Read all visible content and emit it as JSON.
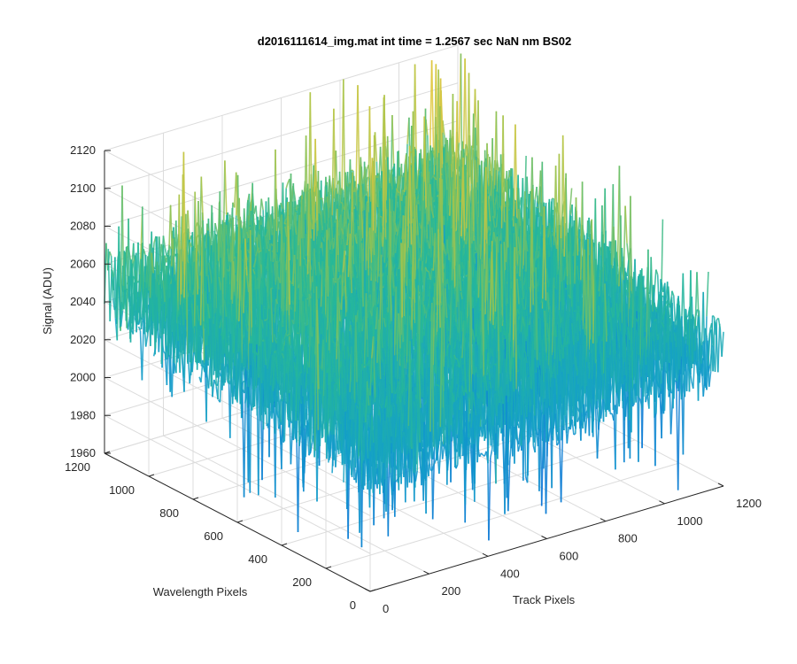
{
  "chart_data": {
    "type": "surface3d",
    "title": "d2016111614_img.mat int time = 1.2567 sec  NaN nm BS02",
    "xlabel": "Track Pixels",
    "ylabel": "Wavelength Pixels",
    "zlabel": "Signal (ADU)",
    "xlim": [
      0,
      1200
    ],
    "ylim": [
      0,
      1200
    ],
    "zlim": [
      1960,
      2120
    ],
    "x_ticks": [
      "0",
      "200",
      "400",
      "600",
      "800",
      "1000",
      "1200"
    ],
    "y_ticks": [
      "0",
      "200",
      "400",
      "600",
      "800",
      "1000",
      "1200"
    ],
    "z_ticks": [
      "1960",
      "1980",
      "2000",
      "2020",
      "2040",
      "2060",
      "2080",
      "2100",
      "2120"
    ],
    "grid": true,
    "colormap": "parula",
    "colors": {
      "low": "#0a72d8",
      "mid": "#20b2aa",
      "high": "#e8c43a",
      "axis": "#262626",
      "grid": "#dcdcdc"
    },
    "surface": {
      "description_values": {
        "x_range": [
          0,
          1200
        ],
        "y_range": [
          0,
          1200
        ],
        "mean_signal": 2040,
        "min_signal": 1965,
        "max_signal": 2120
      },
      "corner_means": {
        "x0_y0": 2030,
        "x1200_y0": 2030,
        "x0_y1200": 2048,
        "x1200_y1200": 2058
      },
      "center_mean": 2045
    }
  }
}
